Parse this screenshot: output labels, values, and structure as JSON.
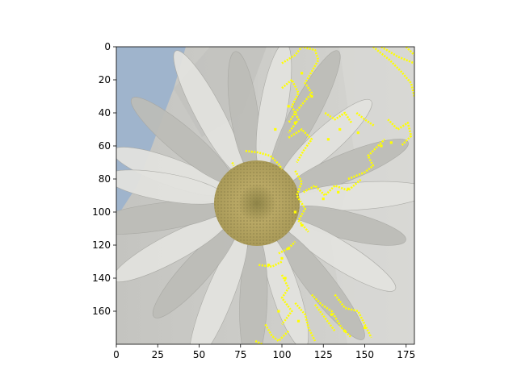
{
  "chart_data": {
    "type": "heatmap",
    "title": "",
    "xlabel": "",
    "ylabel": "",
    "xlim": [
      0,
      180
    ],
    "ylim": [
      180,
      0
    ],
    "x_ticks": [
      "0",
      "25",
      "50",
      "75",
      "100",
      "125",
      "150",
      "175"
    ],
    "y_ticks": [
      "0",
      "20",
      "40",
      "60",
      "80",
      "100",
      "120",
      "140",
      "160"
    ],
    "image_description_colors": {
      "sky": "#9fb4cc",
      "wall": "#cfcfcb",
      "petal": "#e3e3df",
      "petal_shadow": "#bdbdb8",
      "center": "#b9a865",
      "center_dark": "#8f8548",
      "overlay": "#ffff00"
    },
    "overlay": {
      "edges": [
        [
          [
            100,
            10
          ],
          [
            108,
            5
          ],
          [
            112,
            0
          ],
          [
            120,
            2
          ],
          [
            122,
            8
          ],
          [
            118,
            15
          ],
          [
            114,
            22
          ],
          [
            118,
            28
          ],
          [
            112,
            35
          ],
          [
            108,
            40
          ],
          [
            104,
            46
          ]
        ],
        [
          [
            100,
            25
          ],
          [
            106,
            20
          ],
          [
            110,
            28
          ],
          [
            106,
            36
          ],
          [
            110,
            44
          ],
          [
            104,
            52
          ]
        ],
        [
          [
            104,
            55
          ],
          [
            112,
            50
          ],
          [
            118,
            56
          ],
          [
            113,
            63
          ],
          [
            109,
            70
          ]
        ],
        [
          [
            78,
            63
          ],
          [
            86,
            64
          ],
          [
            93,
            66
          ],
          [
            98,
            71
          ],
          [
            100,
            74
          ]
        ],
        [
          [
            70,
            70
          ],
          [
            71,
            72
          ]
        ],
        [
          [
            108,
            75
          ],
          [
            112,
            82
          ],
          [
            109,
            90
          ],
          [
            114,
            98
          ],
          [
            110,
            105
          ],
          [
            116,
            112
          ]
        ],
        [
          [
            113,
            88
          ],
          [
            120,
            84
          ],
          [
            126,
            90
          ],
          [
            132,
            84
          ],
          [
            140,
            87
          ],
          [
            148,
            80
          ]
        ],
        [
          [
            140,
            80
          ],
          [
            150,
            76
          ],
          [
            155,
            72
          ],
          [
            152,
            66
          ],
          [
            158,
            60
          ],
          [
            162,
            56
          ]
        ],
        [
          [
            164,
            44
          ],
          [
            170,
            50
          ],
          [
            176,
            46
          ],
          [
            178,
            54
          ],
          [
            172,
            60
          ]
        ],
        [
          [
            126,
            40
          ],
          [
            132,
            44
          ],
          [
            138,
            40
          ],
          [
            142,
            46
          ]
        ],
        [
          [
            145,
            40
          ],
          [
            150,
            44
          ],
          [
            156,
            48
          ]
        ],
        [
          [
            155,
            0
          ],
          [
            165,
            8
          ],
          [
            172,
            15
          ],
          [
            178,
            22
          ],
          [
            180,
            30
          ]
        ],
        [
          [
            160,
            0
          ],
          [
            170,
            6
          ],
          [
            180,
            10
          ]
        ],
        [
          [
            175,
            0
          ],
          [
            180,
            5
          ]
        ],
        [
          [
            98,
            125
          ],
          [
            104,
            122
          ],
          [
            108,
            118
          ]
        ],
        [
          [
            86,
            132
          ],
          [
            94,
            133
          ],
          [
            100,
            130
          ]
        ],
        [
          [
            100,
            138
          ],
          [
            104,
            146
          ],
          [
            100,
            152
          ],
          [
            106,
            160
          ],
          [
            100,
            168
          ]
        ],
        [
          [
            90,
            168
          ],
          [
            94,
            175
          ],
          [
            98,
            178
          ],
          [
            104,
            172
          ]
        ],
        [
          [
            108,
            155
          ],
          [
            114,
            162
          ],
          [
            116,
            170
          ],
          [
            120,
            178
          ]
        ],
        [
          [
            118,
            150
          ],
          [
            124,
            156
          ],
          [
            130,
            160
          ],
          [
            136,
            170
          ],
          [
            142,
            176
          ]
        ],
        [
          [
            132,
            150
          ],
          [
            138,
            158
          ],
          [
            146,
            160
          ],
          [
            150,
            168
          ],
          [
            154,
            176
          ]
        ],
        [
          [
            120,
            156
          ],
          [
            126,
            164
          ],
          [
            132,
            172
          ]
        ],
        [
          [
            84,
            178
          ],
          [
            88,
            180
          ]
        ]
      ],
      "dots": [
        [
          112,
          16
        ],
        [
          118,
          30
        ],
        [
          96,
          50
        ],
        [
          104,
          36
        ],
        [
          108,
          46
        ],
        [
          125,
          92
        ],
        [
          134,
          88
        ],
        [
          140,
          86
        ],
        [
          128,
          56
        ],
        [
          135,
          50
        ],
        [
          146,
          52
        ],
        [
          160,
          60
        ],
        [
          166,
          58
        ],
        [
          108,
          100
        ],
        [
          112,
          108
        ],
        [
          104,
          122
        ],
        [
          92,
          132
        ],
        [
          100,
          128
        ],
        [
          102,
          140
        ],
        [
          98,
          160
        ],
        [
          110,
          166
        ],
        [
          130,
          162
        ],
        [
          150,
          170
        ],
        [
          138,
          172
        ]
      ]
    }
  }
}
